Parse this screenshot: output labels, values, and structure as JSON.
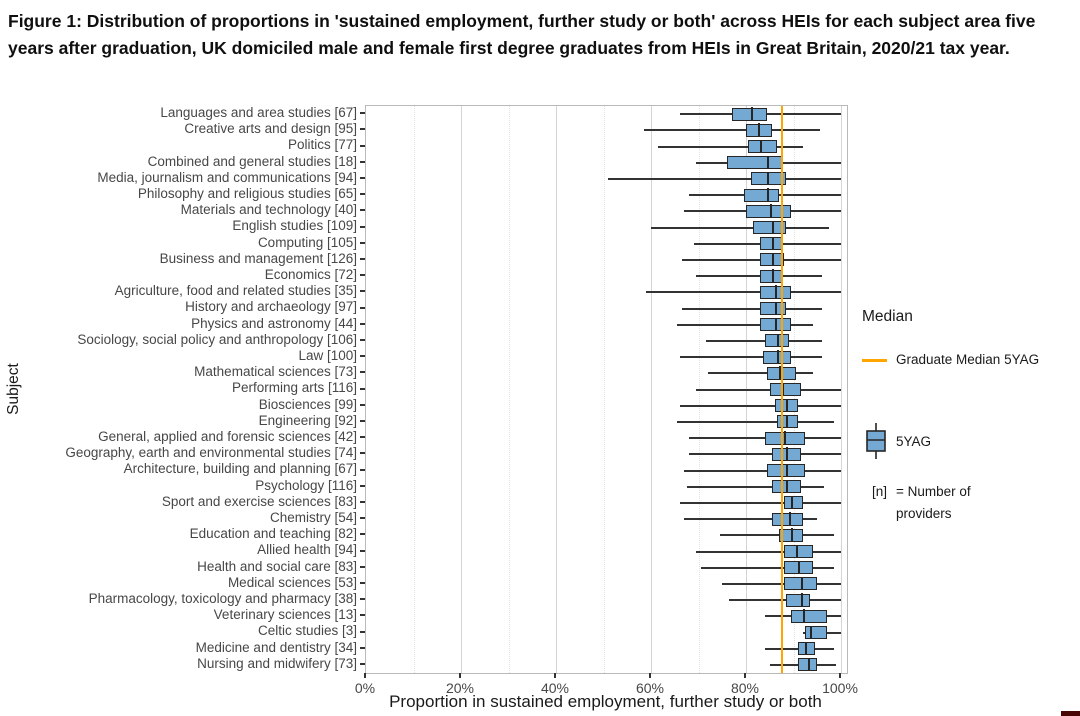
{
  "figure": {
    "title": "Figure 1: Distribution of proportions in 'sustained employment, further study or both' across HEIs for each subject area five years after graduation, UK domiciled male and female first degree graduates from HEIs in Great Britain, 2020/21 tax year."
  },
  "legend": {
    "title": "Median",
    "ref_label": "Graduate Median 5YAG",
    "box_label": "5YAG",
    "note_prefix": "[n]",
    "note_line1": "= Number of",
    "note_line2": "providers"
  },
  "colors": {
    "box_fill": "#74a9d4",
    "box_border": "#262626",
    "whisker": "#333333",
    "reference_line": "#ffa500",
    "grid_major": "#d4d4d4",
    "grid_minor": "#e2e2e2",
    "panel_border": "#b9b9b9"
  },
  "chart_data": {
    "type": "boxplot",
    "orientation": "horizontal",
    "title": "Figure 1: Distribution of proportions in 'sustained employment, further study or both' across HEIs for each subject area five years after graduation, UK domiciled male and female first degree graduates from HEIs in Great Britain, 2020/21 tax year.",
    "xlabel": "Proportion in sustained employment, further study or both",
    "ylabel": "Subject",
    "x_unit": "%",
    "xlim": [
      0,
      100
    ],
    "x_major_ticks": [
      0,
      20,
      40,
      60,
      80,
      100
    ],
    "x_tick_labels": [
      "0%",
      "20%",
      "40%",
      "60%",
      "80%",
      "100%"
    ],
    "x_minor_ticks": [
      10,
      30,
      50,
      70,
      90
    ],
    "grid": "on",
    "legend_position": "right",
    "reference_line": {
      "label": "Graduate Median 5YAG",
      "value": 87.5,
      "color": "#ffa500"
    },
    "series_label": "5YAG",
    "n_note": "[n] = Number of providers",
    "subjects": [
      {
        "label": "Languages and area studies",
        "n": 67,
        "whisker_low": 66,
        "q1": 77,
        "median": 81,
        "q3": 84.5,
        "whisker_high": 100
      },
      {
        "label": "Creative arts and design",
        "n": 95,
        "whisker_low": 58.5,
        "q1": 80,
        "median": 82.5,
        "q3": 85.5,
        "whisker_high": 95.5
      },
      {
        "label": "Politics",
        "n": 77,
        "whisker_low": 61.5,
        "q1": 80.5,
        "median": 83,
        "q3": 86.5,
        "whisker_high": 92
      },
      {
        "label": "Combined and general studies",
        "n": 18,
        "whisker_low": 69.5,
        "q1": 76,
        "median": 84.5,
        "q3": 87.5,
        "whisker_high": 100
      },
      {
        "label": "Media, journalism and communications",
        "n": 94,
        "whisker_low": 51,
        "q1": 81,
        "median": 84.5,
        "q3": 88.5,
        "whisker_high": 100
      },
      {
        "label": "Philosophy and religious studies",
        "n": 65,
        "whisker_low": 68,
        "q1": 79.5,
        "median": 84.5,
        "q3": 87,
        "whisker_high": 100
      },
      {
        "label": "Materials and technology",
        "n": 40,
        "whisker_low": 67,
        "q1": 80,
        "median": 85,
        "q3": 89.5,
        "whisker_high": 100
      },
      {
        "label": "English studies",
        "n": 109,
        "whisker_low": 60,
        "q1": 81.5,
        "median": 85.5,
        "q3": 88.5,
        "whisker_high": 97.5
      },
      {
        "label": "Computing",
        "n": 105,
        "whisker_low": 69,
        "q1": 83,
        "median": 85.5,
        "q3": 87.5,
        "whisker_high": 100
      },
      {
        "label": "Business and management",
        "n": 126,
        "whisker_low": 66.5,
        "q1": 83,
        "median": 85.5,
        "q3": 88,
        "whisker_high": 100
      },
      {
        "label": "Economics",
        "n": 72,
        "whisker_low": 69.5,
        "q1": 83,
        "median": 85.5,
        "q3": 87.5,
        "whisker_high": 96
      },
      {
        "label": "Agriculture, food and related studies",
        "n": 35,
        "whisker_low": 59,
        "q1": 83,
        "median": 86,
        "q3": 89.5,
        "whisker_high": 100
      },
      {
        "label": "History and archaeology",
        "n": 97,
        "whisker_low": 66.5,
        "q1": 83,
        "median": 86,
        "q3": 88.5,
        "whisker_high": 96
      },
      {
        "label": "Physics and astronomy",
        "n": 44,
        "whisker_low": 65.5,
        "q1": 83,
        "median": 86,
        "q3": 89.5,
        "whisker_high": 94
      },
      {
        "label": "Sociology, social policy and anthropology",
        "n": 106,
        "whisker_low": 71.5,
        "q1": 84,
        "median": 86.5,
        "q3": 89,
        "whisker_high": 96
      },
      {
        "label": "Law",
        "n": 100,
        "whisker_low": 66,
        "q1": 83.5,
        "median": 86.5,
        "q3": 89.5,
        "whisker_high": 96
      },
      {
        "label": "Mathematical sciences",
        "n": 73,
        "whisker_low": 72,
        "q1": 84.5,
        "median": 87,
        "q3": 90.5,
        "whisker_high": 94
      },
      {
        "label": "Performing arts",
        "n": 116,
        "whisker_low": 69.5,
        "q1": 85,
        "median": 87.5,
        "q3": 91.5,
        "whisker_high": 100
      },
      {
        "label": "Biosciences",
        "n": 99,
        "whisker_low": 66,
        "q1": 86,
        "median": 88.5,
        "q3": 91,
        "whisker_high": 100
      },
      {
        "label": "Engineering",
        "n": 92,
        "whisker_low": 65.5,
        "q1": 86.5,
        "median": 88.5,
        "q3": 91,
        "whisker_high": 98.5
      },
      {
        "label": "General, applied and forensic sciences",
        "n": 42,
        "whisker_low": 68,
        "q1": 84,
        "median": 88,
        "q3": 92.5,
        "whisker_high": 100
      },
      {
        "label": "Geography, earth and environmental studies",
        "n": 74,
        "whisker_low": 68,
        "q1": 85.5,
        "median": 88.5,
        "q3": 91.5,
        "whisker_high": 100
      },
      {
        "label": "Architecture, building and planning",
        "n": 67,
        "whisker_low": 67,
        "q1": 84.5,
        "median": 88.5,
        "q3": 92.5,
        "whisker_high": 100
      },
      {
        "label": "Psychology",
        "n": 116,
        "whisker_low": 67.5,
        "q1": 85.5,
        "median": 88.5,
        "q3": 91.5,
        "whisker_high": 96.5
      },
      {
        "label": "Sport and exercise sciences",
        "n": 83,
        "whisker_low": 66,
        "q1": 88,
        "median": 89.5,
        "q3": 92,
        "whisker_high": 100
      },
      {
        "label": "Chemistry",
        "n": 54,
        "whisker_low": 67,
        "q1": 85.5,
        "median": 89,
        "q3": 92,
        "whisker_high": 95
      },
      {
        "label": "Education and teaching",
        "n": 82,
        "whisker_low": 74.5,
        "q1": 87,
        "median": 89.5,
        "q3": 92,
        "whisker_high": 98.5
      },
      {
        "label": "Allied health",
        "n": 94,
        "whisker_low": 69.5,
        "q1": 88,
        "median": 90.5,
        "q3": 94,
        "whisker_high": 100
      },
      {
        "label": "Health and social care",
        "n": 83,
        "whisker_low": 70.5,
        "q1": 88,
        "median": 91,
        "q3": 94,
        "whisker_high": 98.5
      },
      {
        "label": "Medical sciences",
        "n": 53,
        "whisker_low": 75,
        "q1": 88,
        "median": 91.5,
        "q3": 95,
        "whisker_high": 100
      },
      {
        "label": "Pharmacology, toxicology and pharmacy",
        "n": 38,
        "whisker_low": 76.5,
        "q1": 88.5,
        "median": 91.5,
        "q3": 93.5,
        "whisker_high": 100
      },
      {
        "label": "Veterinary sciences",
        "n": 13,
        "whisker_low": 84,
        "q1": 89.5,
        "median": 92,
        "q3": 97,
        "whisker_high": 100
      },
      {
        "label": "Celtic studies",
        "n": 3,
        "whisker_low": 92,
        "q1": 92.5,
        "median": 93.5,
        "q3": 97,
        "whisker_high": 100
      },
      {
        "label": "Medicine and dentistry",
        "n": 34,
        "whisker_low": 84,
        "q1": 91,
        "median": 92.5,
        "q3": 94.5,
        "whisker_high": 98.5
      },
      {
        "label": "Nursing and midwifery",
        "n": 73,
        "whisker_low": 85,
        "q1": 91,
        "median": 93,
        "q3": 95,
        "whisker_high": 99
      }
    ]
  }
}
